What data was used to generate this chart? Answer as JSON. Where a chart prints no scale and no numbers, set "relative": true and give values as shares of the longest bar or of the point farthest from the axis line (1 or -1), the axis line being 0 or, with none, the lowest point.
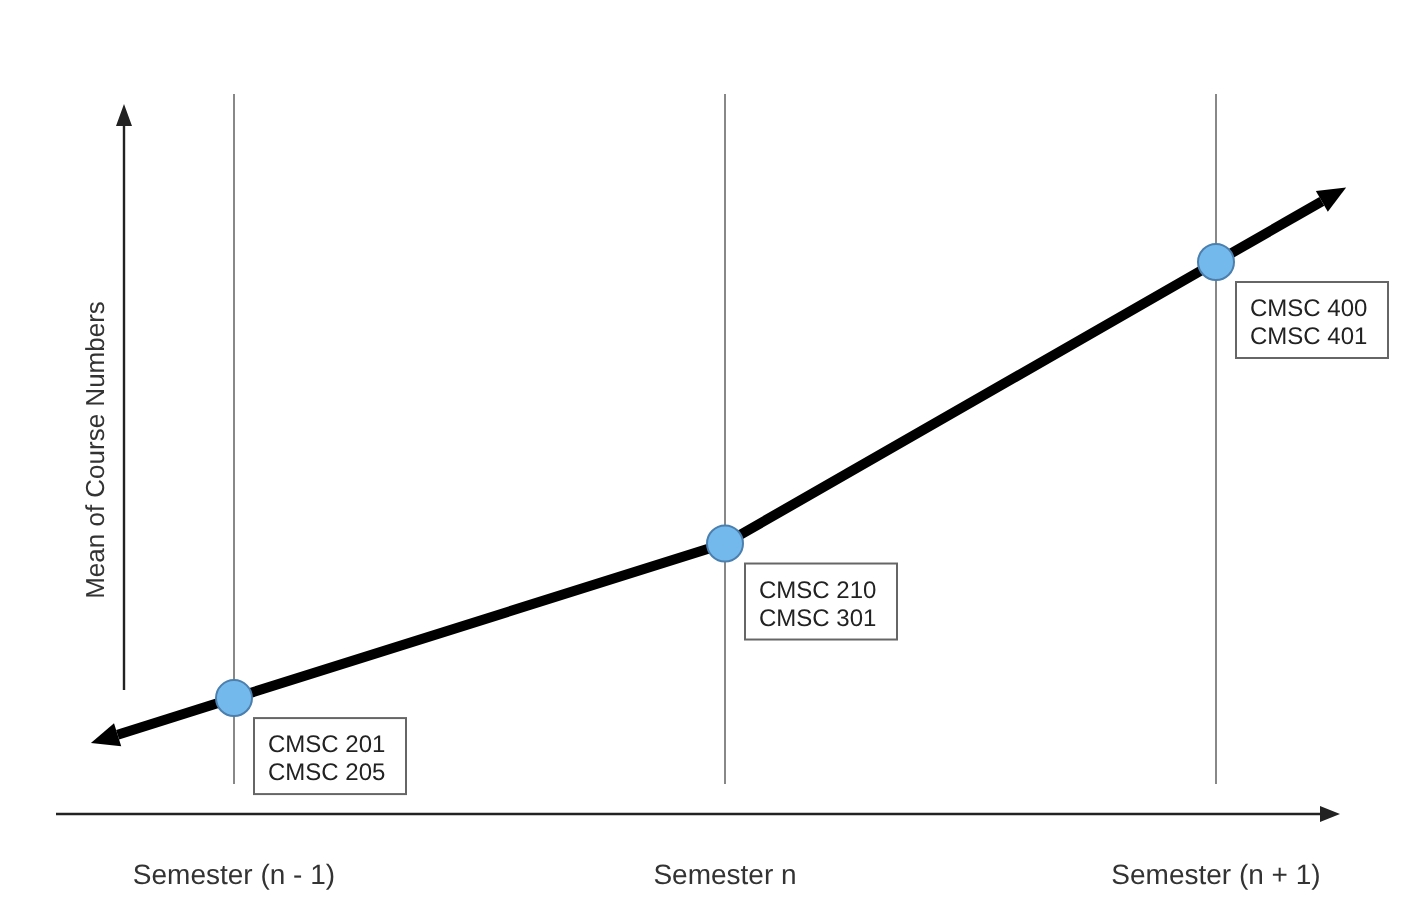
{
  "chart_data": {
    "type": "line",
    "relative": true,
    "ylabel": "Mean of Course Numbers",
    "categories": [
      "Semester (n - 1)",
      "Semester n",
      "Semester (n + 1)"
    ],
    "series": [
      {
        "color": "#000000",
        "values": [
          0.21,
          0.49,
          1
        ]
      }
    ],
    "marker": "circle",
    "grid": "x",
    "legend": false,
    "annotations": [
      {
        "text": "CMSC 201\nCMSC 205",
        "x": "Semester (n - 1)",
        "y": 0.21
      },
      {
        "text": "CMSC 210\nCMSC 301",
        "x": "Semester n",
        "y": 0.49
      },
      {
        "text": "CMSC 400\nCMSC 401",
        "x": "Semester (n + 1)",
        "y": 1
      }
    ]
  }
}
